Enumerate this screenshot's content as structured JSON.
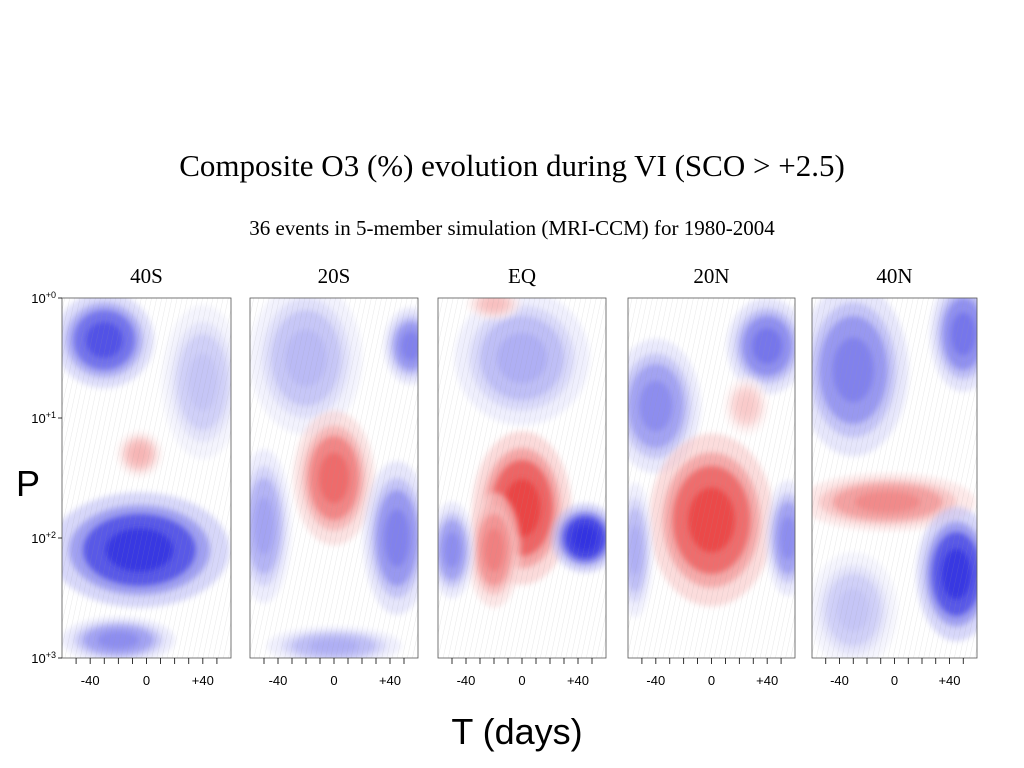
{
  "chart_data": {
    "type": "heatmap",
    "title": "Composite O3 (%) evolution during VI (SCO > +2.5)",
    "subtitle": "36 events in 5-member simulation (MRI-CCM)  for 1980-2004",
    "xlabel": "T (days)",
    "ylabel": "P",
    "x_ticks": [
      "-40",
      "0",
      "+40"
    ],
    "y_ticks": [
      {
        "base": "10",
        "exp": "+0"
      },
      {
        "base": "10",
        "exp": "+1"
      },
      {
        "base": "10",
        "exp": "+2"
      },
      {
        "base": "10",
        "exp": "+3"
      }
    ],
    "xlim": [
      -60,
      60
    ],
    "ylim_log_p": [
      0,
      3
    ],
    "colors": {
      "positive": "#e83b3b",
      "negative": "#2b2be0",
      "neutral": "#ffffff"
    },
    "panels": [
      {
        "name": "40S",
        "anomalies": [
          {
            "t": -30,
            "logp": 0.35,
            "rt": 22,
            "rl": 0.25,
            "v": -0.75
          },
          {
            "t": 40,
            "logp": 0.7,
            "rt": 18,
            "rl": 0.4,
            "v": -0.25
          },
          {
            "t": -5,
            "logp": 1.3,
            "rt": 10,
            "rl": 0.12,
            "v": 0.35
          },
          {
            "t": -5,
            "logp": 2.1,
            "rt": 40,
            "rl": 0.3,
            "v": -0.9
          },
          {
            "t": -20,
            "logp": 2.85,
            "rt": 25,
            "rl": 0.12,
            "v": -0.5
          }
        ]
      },
      {
        "name": "20S",
        "anomalies": [
          {
            "t": -20,
            "logp": 0.5,
            "rt": 25,
            "rl": 0.4,
            "v": -0.3
          },
          {
            "t": 55,
            "logp": 0.4,
            "rt": 12,
            "rl": 0.2,
            "v": -0.55
          },
          {
            "t": 0,
            "logp": 1.5,
            "rt": 18,
            "rl": 0.35,
            "v": 0.7
          },
          {
            "t": -50,
            "logp": 1.9,
            "rt": 12,
            "rl": 0.4,
            "v": -0.4
          },
          {
            "t": 45,
            "logp": 2.0,
            "rt": 15,
            "rl": 0.4,
            "v": -0.55
          },
          {
            "t": 0,
            "logp": 2.9,
            "rt": 30,
            "rl": 0.1,
            "v": -0.35
          }
        ]
      },
      {
        "name": "EQ",
        "anomalies": [
          {
            "t": 0,
            "logp": 0.5,
            "rt": 30,
            "rl": 0.35,
            "v": -0.35
          },
          {
            "t": -20,
            "logp": 0.05,
            "rt": 12,
            "rl": 0.08,
            "v": 0.3
          },
          {
            "t": 0,
            "logp": 1.75,
            "rt": 22,
            "rl": 0.4,
            "v": 0.9
          },
          {
            "t": -20,
            "logp": 2.1,
            "rt": 12,
            "rl": 0.3,
            "v": 0.6
          },
          {
            "t": 45,
            "logp": 2.0,
            "rt": 15,
            "rl": 0.18,
            "v": -1.0
          },
          {
            "t": -50,
            "logp": 2.1,
            "rt": 10,
            "rl": 0.25,
            "v": -0.5
          }
        ]
      },
      {
        "name": "20N",
        "anomalies": [
          {
            "t": 40,
            "logp": 0.4,
            "rt": 18,
            "rl": 0.25,
            "v": -0.6
          },
          {
            "t": -40,
            "logp": 0.9,
            "rt": 20,
            "rl": 0.35,
            "v": -0.5
          },
          {
            "t": 25,
            "logp": 0.9,
            "rt": 10,
            "rl": 0.15,
            "v": 0.25
          },
          {
            "t": 0,
            "logp": 1.85,
            "rt": 28,
            "rl": 0.45,
            "v": 0.85
          },
          {
            "t": 55,
            "logp": 2.0,
            "rt": 10,
            "rl": 0.3,
            "v": -0.5
          },
          {
            "t": -55,
            "logp": 2.1,
            "rt": 8,
            "rl": 0.35,
            "v": -0.35
          }
        ]
      },
      {
        "name": "40N",
        "anomalies": [
          {
            "t": -30,
            "logp": 0.6,
            "rt": 25,
            "rl": 0.45,
            "v": -0.55
          },
          {
            "t": 50,
            "logp": 0.3,
            "rt": 15,
            "rl": 0.3,
            "v": -0.6
          },
          {
            "t": -5,
            "logp": 1.7,
            "rt": 40,
            "rl": 0.15,
            "v": 0.55
          },
          {
            "t": 45,
            "logp": 2.3,
            "rt": 18,
            "rl": 0.35,
            "v": -0.9
          },
          {
            "t": -30,
            "logp": 2.6,
            "rt": 20,
            "rl": 0.3,
            "v": -0.25
          }
        ]
      }
    ]
  }
}
